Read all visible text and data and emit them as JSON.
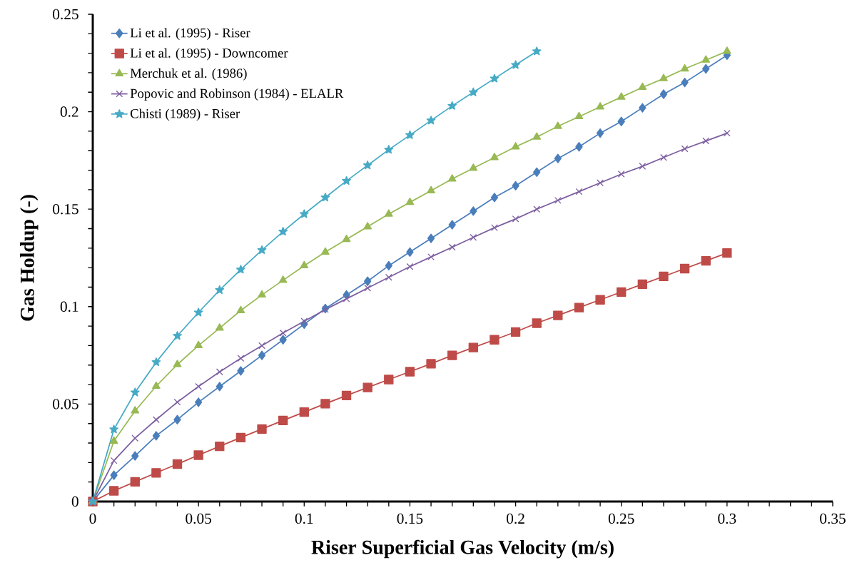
{
  "chart_data": {
    "type": "line",
    "xlabel": "Riser Superficial Gas Velocity (m/s)",
    "ylabel": "Gas Holdup (-)",
    "legend": "top left",
    "grid": false,
    "line_style": "solid",
    "xlim": [
      0,
      0.35
    ],
    "ylim": [
      0,
      0.25
    ],
    "xticks": [
      0,
      0.05,
      0.1,
      0.15,
      0.2,
      0.25,
      0.3,
      0.35
    ],
    "yticks": [
      0,
      0.05,
      0.1,
      0.15,
      0.2,
      0.25
    ],
    "x": [
      0,
      0.01,
      0.02,
      0.03,
      0.04,
      0.05,
      0.06,
      0.07,
      0.08,
      0.09,
      0.1,
      0.11,
      0.12,
      0.13,
      0.14,
      0.15,
      0.16,
      0.17,
      0.18,
      0.19,
      0.2,
      0.21,
      0.22,
      0.23,
      0.24,
      0.25,
      0.26,
      0.27,
      0.28,
      0.29,
      0.3
    ],
    "series": [
      {
        "name": "Li et al. (1995) - Riser",
        "color": "#4a7ebb",
        "marker": "diamond",
        "values": [
          0,
          0.0135,
          0.0234,
          0.0337,
          0.042,
          0.0509,
          0.059,
          0.067,
          0.075,
          0.083,
          0.091,
          0.099,
          0.106,
          0.113,
          0.121,
          0.128,
          0.135,
          0.142,
          0.149,
          0.156,
          0.162,
          0.169,
          0.176,
          0.182,
          0.189,
          0.195,
          0.202,
          0.209,
          0.215,
          0.222,
          0.229
        ]
      },
      {
        "name": "Li et al. (1995) - Downcomer",
        "color": "#be4b48",
        "marker": "square",
        "values": [
          0,
          0.0055,
          0.0101,
          0.0147,
          0.0192,
          0.0238,
          0.0283,
          0.0328,
          0.0372,
          0.0416,
          0.0459,
          0.0502,
          0.0544,
          0.0585,
          0.0626,
          0.0666,
          0.0707,
          0.075,
          0.079,
          0.083,
          0.087,
          0.0915,
          0.0955,
          0.0995,
          0.1035,
          0.1075,
          0.1115,
          0.1155,
          0.1195,
          0.1235,
          0.1275
        ]
      },
      {
        "name": "Merchuk et al. (1986)",
        "color": "#98b954",
        "marker": "triangle",
        "values": [
          0,
          0.031,
          0.0465,
          0.0592,
          0.0703,
          0.08,
          0.089,
          0.098,
          0.106,
          0.1135,
          0.121,
          0.128,
          0.1345,
          0.141,
          0.1475,
          0.1535,
          0.1595,
          0.1655,
          0.171,
          0.1765,
          0.182,
          0.187,
          0.1925,
          0.1975,
          0.2025,
          0.2075,
          0.2125,
          0.217,
          0.222,
          0.2265,
          0.231
        ]
      },
      {
        "name": "Popovic and Robinson (1984) - ELALR",
        "color": "#7d5fa0",
        "marker": "cross",
        "values": [
          0,
          0.021,
          0.0325,
          0.042,
          0.051,
          0.059,
          0.0665,
          0.0735,
          0.08,
          0.0865,
          0.0925,
          0.0985,
          0.104,
          0.1095,
          0.115,
          0.1205,
          0.1255,
          0.1305,
          0.1355,
          0.1405,
          0.145,
          0.15,
          0.1545,
          0.159,
          0.1635,
          0.168,
          0.172,
          0.1765,
          0.181,
          0.185,
          0.189
        ]
      },
      {
        "name": "Chisti (1989) - Riser",
        "color": "#46aac5",
        "marker": "star",
        "values": [
          0,
          0.037,
          0.056,
          0.0715,
          0.085,
          0.097,
          0.1085,
          0.119,
          0.129,
          0.1385,
          0.1475,
          0.156,
          0.1645,
          0.1725,
          0.1805,
          0.188,
          0.1955,
          0.203,
          0.21,
          0.217,
          0.224,
          0.231,
          null,
          null,
          null,
          null,
          null,
          null,
          null,
          null,
          null
        ]
      }
    ]
  }
}
